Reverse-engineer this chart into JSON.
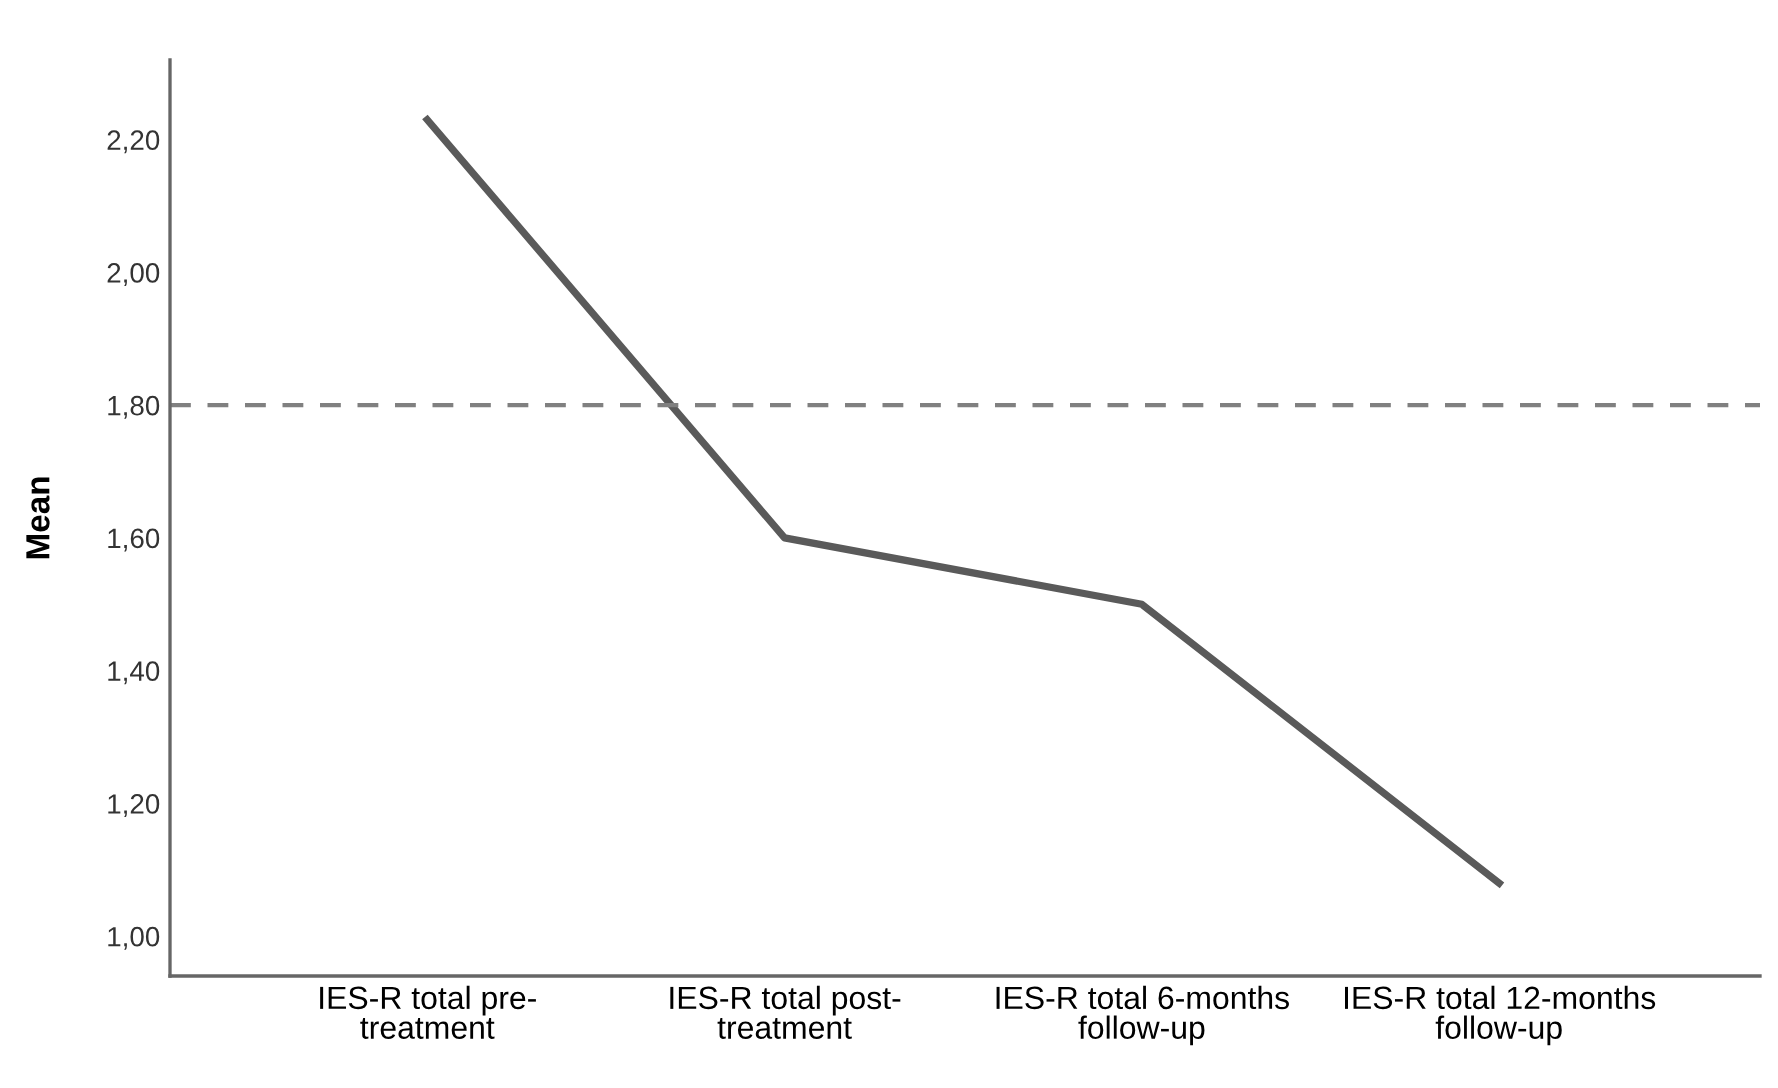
{
  "chart_data": {
    "type": "line",
    "ylabel": "Mean",
    "categories": [
      "IES-R total pre-\ntreatment",
      "IES-R total post-\ntreatment",
      "IES-R total 6-months\nfollow-up",
      "IES-R total 12-months\nfollow-up"
    ],
    "series": [
      {
        "color": "#5a5a5a",
        "values": [
          2.23,
          1.6,
          1.5,
          1.08
        ]
      }
    ],
    "ylim": [
      0.94,
      2.32
    ],
    "yticks": [
      {
        "value": 1.0,
        "label": "1,00"
      },
      {
        "value": 1.2,
        "label": "1,20"
      },
      {
        "value": 1.4,
        "label": "1,40"
      },
      {
        "value": 1.6,
        "label": "1,60"
      },
      {
        "value": 1.8,
        "label": "1,80"
      },
      {
        "value": 2.0,
        "label": "2,00"
      },
      {
        "value": 2.2,
        "label": "2,20"
      }
    ],
    "ref_lines": [
      {
        "axis": "y",
        "value": 1.8,
        "color": "#808080",
        "line_style": "dashed"
      }
    ],
    "grid": false,
    "marker": "none",
    "line_style": "solid"
  }
}
